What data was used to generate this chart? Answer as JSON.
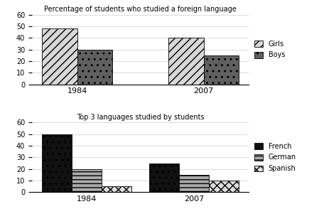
{
  "chart1": {
    "title": "Percentage of students who studied a foreign language",
    "years": [
      "1984",
      "2007"
    ],
    "girls": [
      48,
      40
    ],
    "boys": [
      30,
      25
    ],
    "ylim": [
      0,
      60
    ],
    "yticks": [
      0,
      10,
      20,
      30,
      40,
      50,
      60
    ],
    "legend_labels": [
      "Girls",
      "Boys"
    ],
    "girls_hatch": "///",
    "girls_color": "#d8d8d8",
    "boys_hatch": "..",
    "boys_color": "#606060"
  },
  "chart2": {
    "title": "Top 3 languages studied by students",
    "years": [
      "1984",
      "2007"
    ],
    "french": [
      50,
      25
    ],
    "german": [
      20,
      15
    ],
    "spanish": [
      5,
      10
    ],
    "ylim": [
      0,
      60
    ],
    "yticks": [
      0,
      10,
      20,
      30,
      40,
      50,
      60
    ],
    "legend_labels": [
      "French",
      "German",
      "Spanish"
    ],
    "french_hatch": "..",
    "french_color": "#111111",
    "german_hatch": "---",
    "german_color": "#aaaaaa",
    "spanish_hatch": "xxx",
    "spanish_color": "#dddddd"
  },
  "bar_width": 0.28,
  "background_color": "#ffffff"
}
